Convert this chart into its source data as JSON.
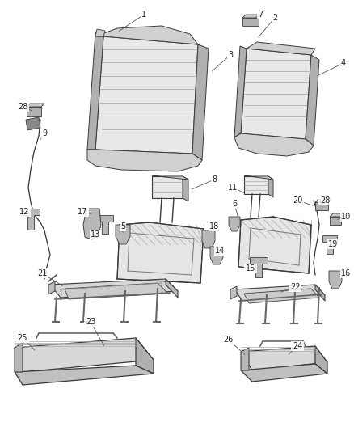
{
  "bg_color": "#ffffff",
  "fig_width": 4.38,
  "fig_height": 5.33,
  "dpi": 100,
  "line_color": "#3a3a3a",
  "light_fill": "#e8e8e8",
  "mid_fill": "#d0d0d0",
  "dark_fill": "#b0b0b0",
  "stripe_color": "#999999",
  "label_fontsize": 7.0,
  "label_color": "#222222",
  "leader_color": "#555555"
}
